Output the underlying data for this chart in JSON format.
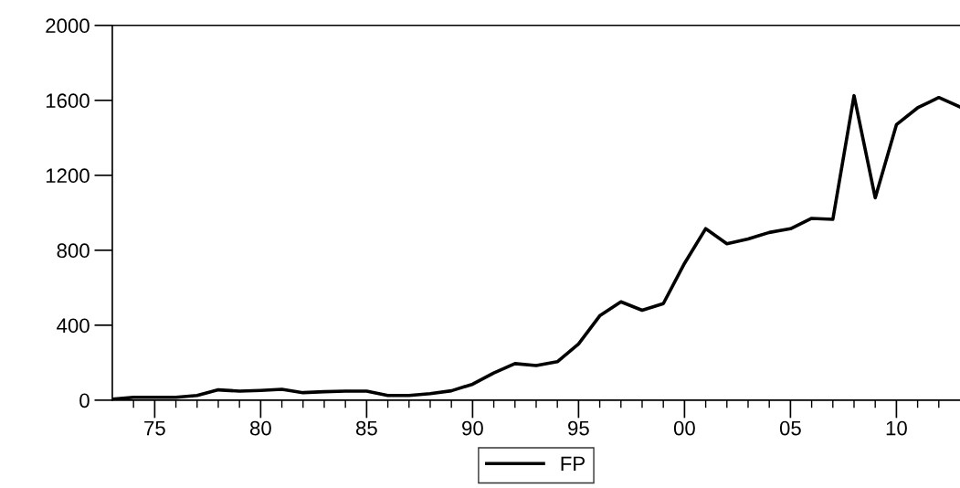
{
  "chart_data": {
    "type": "line",
    "x": [
      1973,
      1974,
      1975,
      1976,
      1977,
      1978,
      1979,
      1980,
      1981,
      1982,
      1983,
      1984,
      1985,
      1986,
      1987,
      1988,
      1989,
      1990,
      1991,
      1992,
      1993,
      1994,
      1995,
      1996,
      1997,
      1998,
      1999,
      2000,
      2001,
      2002,
      2003,
      2004,
      2005,
      2006,
      2007,
      2008,
      2009,
      2010,
      2011,
      2012,
      2013
    ],
    "series": [
      {
        "name": "FP",
        "color": "#000000",
        "values": [
          5,
          15,
          15,
          15,
          25,
          55,
          48,
          52,
          58,
          40,
          45,
          48,
          48,
          25,
          25,
          35,
          50,
          85,
          145,
          195,
          185,
          205,
          300,
          450,
          525,
          480,
          515,
          730,
          915,
          835,
          860,
          895,
          915,
          970,
          965,
          1625,
          1080,
          1470,
          1560,
          1615,
          1565
        ]
      }
    ],
    "xlim": [
      1973,
      2013
    ],
    "ylim": [
      0,
      2000
    ],
    "xticks": [
      {
        "value": 1974,
        "label": null
      },
      {
        "value": 1975,
        "label": "75"
      },
      {
        "value": 1976,
        "label": null
      },
      {
        "value": 1977,
        "label": null
      },
      {
        "value": 1978,
        "label": null
      },
      {
        "value": 1979,
        "label": null
      },
      {
        "value": 1980,
        "label": "80"
      },
      {
        "value": 1981,
        "label": null
      },
      {
        "value": 1982,
        "label": null
      },
      {
        "value": 1983,
        "label": null
      },
      {
        "value": 1984,
        "label": null
      },
      {
        "value": 1985,
        "label": "85"
      },
      {
        "value": 1986,
        "label": null
      },
      {
        "value": 1987,
        "label": null
      },
      {
        "value": 1988,
        "label": null
      },
      {
        "value": 1989,
        "label": null
      },
      {
        "value": 1990,
        "label": "90"
      },
      {
        "value": 1991,
        "label": null
      },
      {
        "value": 1992,
        "label": null
      },
      {
        "value": 1993,
        "label": null
      },
      {
        "value": 1994,
        "label": null
      },
      {
        "value": 1995,
        "label": "95"
      },
      {
        "value": 1996,
        "label": null
      },
      {
        "value": 1997,
        "label": null
      },
      {
        "value": 1998,
        "label": null
      },
      {
        "value": 1999,
        "label": null
      },
      {
        "value": 2000,
        "label": "00"
      },
      {
        "value": 2001,
        "label": null
      },
      {
        "value": 2002,
        "label": null
      },
      {
        "value": 2003,
        "label": null
      },
      {
        "value": 2004,
        "label": null
      },
      {
        "value": 2005,
        "label": "05"
      },
      {
        "value": 2006,
        "label": null
      },
      {
        "value": 2007,
        "label": null
      },
      {
        "value": 2008,
        "label": null
      },
      {
        "value": 2009,
        "label": null
      },
      {
        "value": 2010,
        "label": "10"
      },
      {
        "value": 2011,
        "label": null
      },
      {
        "value": 2012,
        "label": null
      }
    ],
    "yticks": [
      0,
      400,
      800,
      1200,
      1600,
      2000
    ],
    "grid": false,
    "legend": "bottom"
  }
}
